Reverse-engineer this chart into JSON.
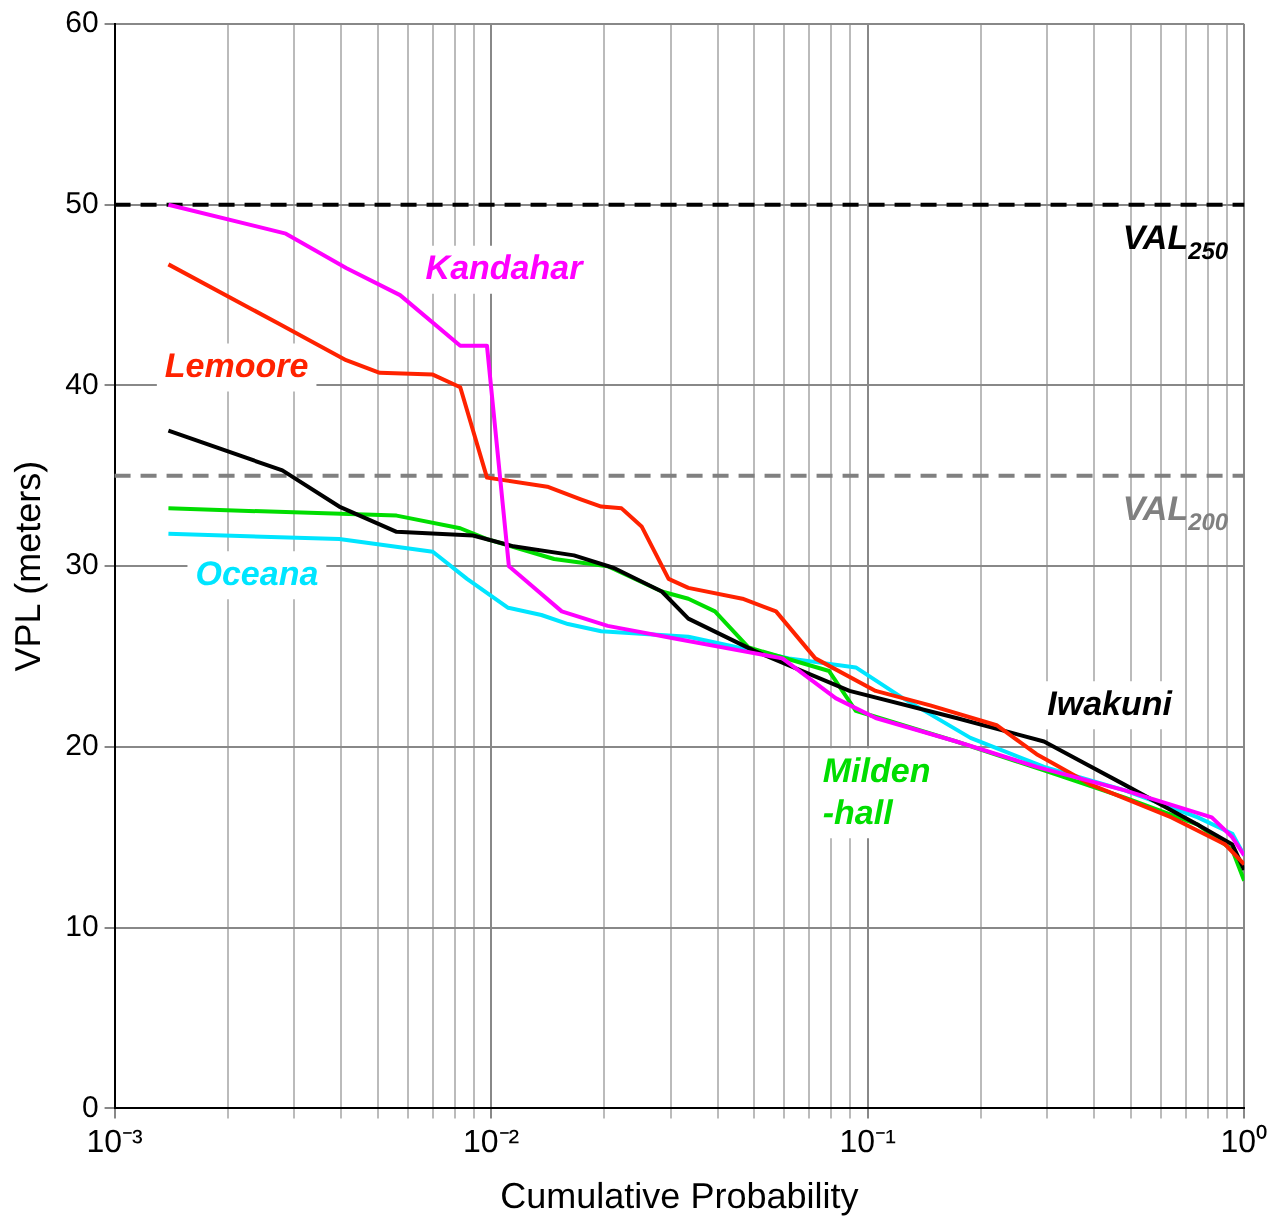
{
  "chart_data": {
    "type": "line",
    "xlabel": "Cumulative Probability",
    "ylabel": "VPL (meters)",
    "log": "x",
    "grid": true,
    "legend": false,
    "marker": "none",
    "line_style": "solid",
    "xlim": [
      0.001,
      1
    ],
    "ylim": [
      0,
      60
    ],
    "yticks": [
      0,
      10,
      20,
      30,
      40,
      50,
      60
    ],
    "xticks": [
      {
        "value": 0.001,
        "label": "10⁻³"
      },
      {
        "value": 0.002,
        "label": null
      },
      {
        "value": 0.003,
        "label": null
      },
      {
        "value": 0.004,
        "label": null
      },
      {
        "value": 0.005,
        "label": null
      },
      {
        "value": 0.006,
        "label": null
      },
      {
        "value": 0.007,
        "label": null
      },
      {
        "value": 0.008,
        "label": null
      },
      {
        "value": 0.009,
        "label": null
      },
      {
        "value": 0.01,
        "label": "10⁻²"
      },
      {
        "value": 0.02,
        "label": null
      },
      {
        "value": 0.03,
        "label": null
      },
      {
        "value": 0.04,
        "label": null
      },
      {
        "value": 0.05,
        "label": null
      },
      {
        "value": 0.06,
        "label": null
      },
      {
        "value": 0.07,
        "label": null
      },
      {
        "value": 0.08,
        "label": null
      },
      {
        "value": 0.09,
        "label": null
      },
      {
        "value": 0.1,
        "label": "10⁻¹"
      },
      {
        "value": 0.2,
        "label": null
      },
      {
        "value": 0.3,
        "label": null
      },
      {
        "value": 0.4,
        "label": null
      },
      {
        "value": 0.5,
        "label": null
      },
      {
        "value": 0.6,
        "label": null
      },
      {
        "value": 0.7,
        "label": null
      },
      {
        "value": 0.8,
        "label": null
      },
      {
        "value": 0.9,
        "label": null
      },
      {
        "value": 1,
        "label": "10⁰"
      }
    ],
    "ref_lines": [
      {
        "axis": "y",
        "value": 50,
        "label": "VAL$_{250}$",
        "color": "#000000",
        "line_style": "dashed"
      },
      {
        "axis": "y",
        "value": 35,
        "label": "VAL$_{200}$",
        "color": "#808080",
        "line_style": "dashed"
      }
    ],
    "series": [
      {
        "name": "Kandahar",
        "color": "#ff00ff",
        "x": [
          0.00139,
          0.00285,
          0.00412,
          0.00573,
          0.00828,
          0.00975,
          0.01115,
          0.0154,
          0.0204,
          0.0307,
          0.0594,
          0.0822,
          0.105,
          0.172,
          0.281,
          0.482,
          0.82,
          0.93,
          1
        ],
        "values": [
          50,
          48.4,
          46.5,
          45,
          42.2,
          42.2,
          30,
          27.5,
          26.7,
          26,
          24.9,
          22.7,
          21.6,
          20.3,
          18.9,
          17.6,
          16.1,
          15,
          14
        ]
      },
      {
        "name": "Lemoore",
        "color": "#ff2200",
        "x": [
          0.00139,
          0.00274,
          0.00412,
          0.00506,
          0.007,
          0.00828,
          0.00975,
          0.0141,
          0.0173,
          0.0196,
          0.0222,
          0.0251,
          0.0296,
          0.0334,
          0.0465,
          0.0571,
          0.0726,
          0.105,
          0.1466,
          0.22,
          0.281,
          0.393,
          0.641,
          0.891,
          1
        ],
        "values": [
          46.7,
          43.4,
          41.4,
          40.7,
          40.6,
          39.9,
          34.9,
          34.4,
          33.7,
          33.3,
          33.2,
          32.2,
          29.3,
          28.8,
          28.2,
          27.5,
          24.9,
          23.1,
          22.3,
          21.2,
          19.6,
          17.9,
          16.1,
          14.6,
          13.5
        ]
      },
      {
        "name": "Iwakuni",
        "color": "#000000",
        "x": [
          0.00139,
          0.00279,
          0.00395,
          0.00561,
          0.00895,
          0.01146,
          0.0166,
          0.0212,
          0.0284,
          0.0334,
          0.0502,
          0.0895,
          0.172,
          0.294,
          0.482,
          0.753,
          0.93,
          1
        ],
        "values": [
          37.5,
          35.3,
          33.3,
          31.9,
          31.7,
          31.1,
          30.6,
          29.9,
          28.6,
          27.1,
          25.3,
          23.1,
          21.6,
          20.3,
          17.9,
          15.7,
          14.6,
          13.2
        ]
      },
      {
        "name": "Milden -hall",
        "color": "#00dd00",
        "x": [
          0.00139,
          0.00561,
          0.00828,
          0.00975,
          0.0147,
          0.0204,
          0.0284,
          0.0334,
          0.0393,
          0.0483,
          0.079,
          0.093,
          0.172,
          0.294,
          0.482,
          0.753,
          0.93,
          1
        ],
        "values": [
          33.2,
          32.8,
          32.1,
          31.5,
          30.4,
          30,
          28.6,
          28.2,
          27.5,
          25.5,
          24.2,
          22,
          20.3,
          18.7,
          17.2,
          15.7,
          14.3,
          12.6
        ]
      },
      {
        "name": "Oceana",
        "color": "#00e5ff",
        "x": [
          0.00139,
          0.00395,
          0.007,
          0.00863,
          0.0111,
          0.0136,
          0.016,
          0.0196,
          0.0334,
          0.0618,
          0.093,
          0.124,
          0.1875,
          0.294,
          0.482,
          0.753,
          0.93,
          1
        ],
        "values": [
          31.8,
          31.5,
          30.8,
          29.3,
          27.7,
          27.3,
          26.8,
          26.4,
          26.1,
          24.9,
          24.4,
          22.7,
          20.5,
          18.9,
          17.6,
          16.1,
          15.2,
          14
        ]
      }
    ]
  }
}
